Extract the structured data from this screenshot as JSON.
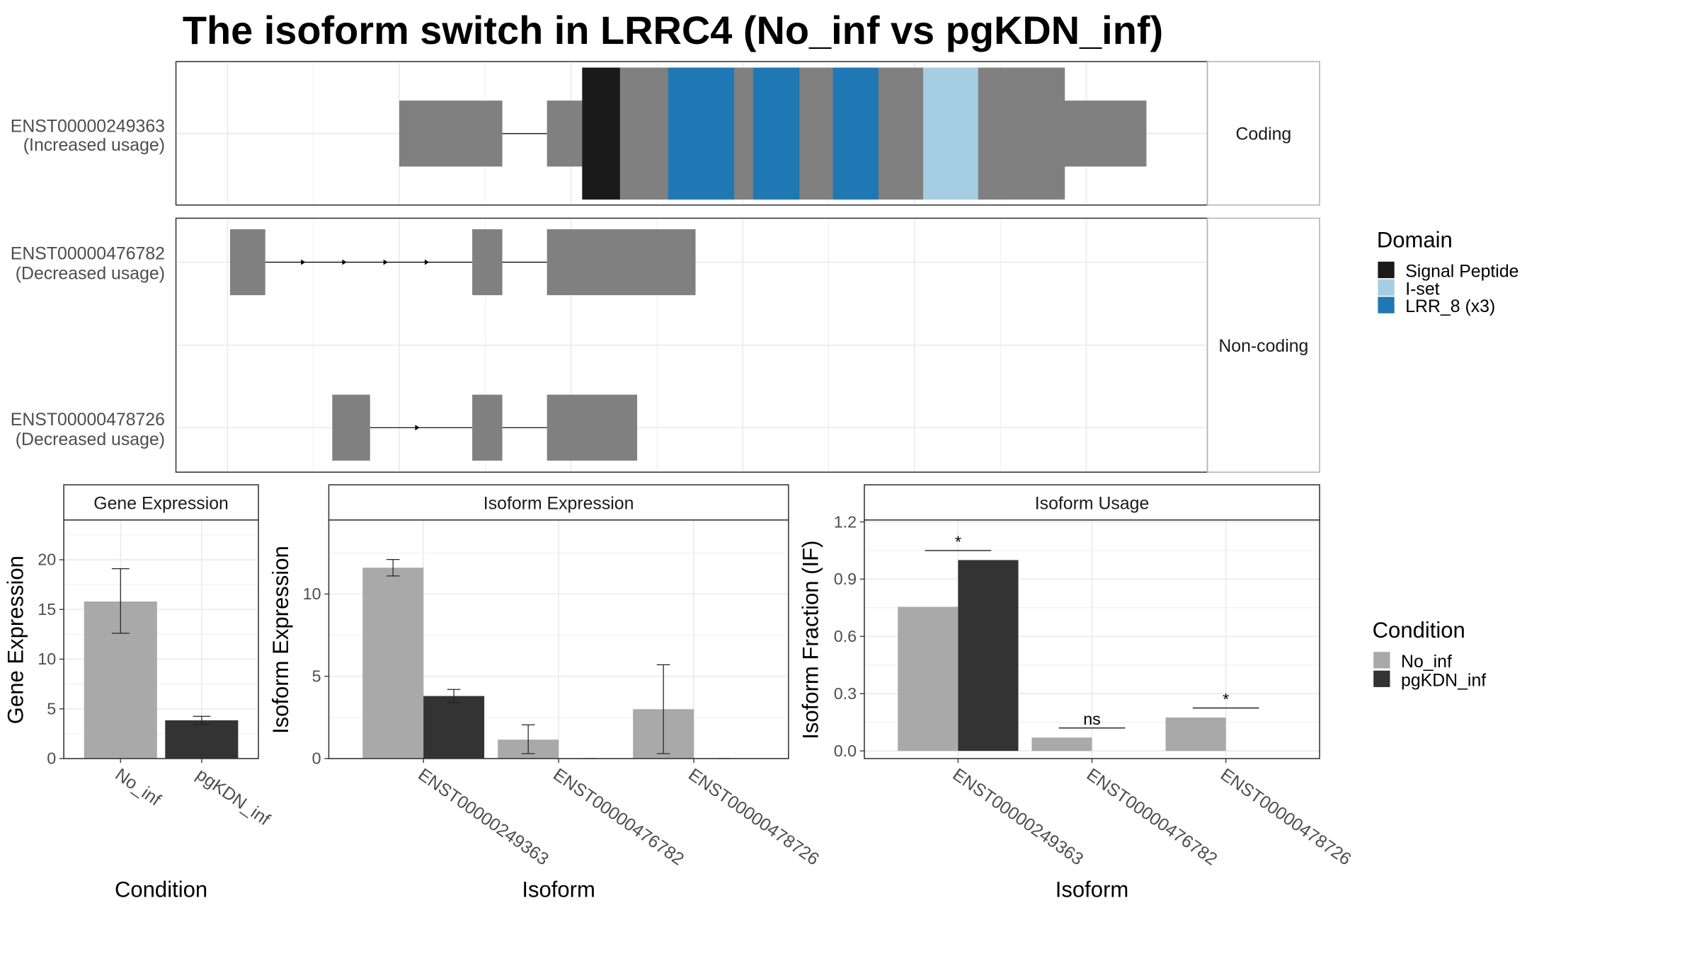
{
  "chart_data": [
    {
      "type": "isoform-structure",
      "title": "The isoform switch in LRRC4 (No_inf vs pgKDN_inf)",
      "facets": [
        "Coding",
        "Non-coding"
      ],
      "isoforms": [
        {
          "id": "ENST00000249363",
          "usage": "(Increased usage)",
          "facet": "Coding",
          "coding": true,
          "exons": [
            [
              1000,
              1120
            ],
            [
              1172,
              1870
            ]
          ],
          "cds": [
            1213,
            1775
          ],
          "domains": [
            {
              "name": "Signal Peptide",
              "start": 1213,
              "end": 1257
            },
            {
              "name": "LRR_8 (x3)",
              "start": 1313,
              "end": 1390
            },
            {
              "name": "LRR_8 (x3)",
              "start": 1412,
              "end": 1466
            },
            {
              "name": "LRR_8 (x3)",
              "start": 1505,
              "end": 1558
            },
            {
              "name": "I-set",
              "start": 1610,
              "end": 1674
            }
          ]
        },
        {
          "id": "ENST00000476782",
          "usage": "(Decreased usage)",
          "facet": "Non-coding",
          "coding": false,
          "exons": [
            [
              803,
              844
            ],
            [
              1085,
              1120
            ],
            [
              1172,
              1345
            ]
          ]
        },
        {
          "id": "ENST00000478726",
          "usage": "(Decreased usage)",
          "facet": "Non-coding",
          "coding": false,
          "exons": [
            [
              922,
              966
            ],
            [
              1085,
              1120
            ],
            [
              1172,
              1277
            ]
          ]
        }
      ],
      "legend": {
        "title": "Domain",
        "items": [
          {
            "name": "Signal Peptide",
            "color": "#1a1a1a"
          },
          {
            "name": "I-set",
            "color": "#a6cee3"
          },
          {
            "name": "LRR_8 (x3)",
            "color": "#1f78b4"
          }
        ]
      }
    },
    {
      "type": "bar",
      "strip": "Gene Expression",
      "xlabel": "Condition",
      "ylabel": "Gene Expression",
      "categories": [
        "No_inf",
        "pgKDN_inf"
      ],
      "values": [
        15.8,
        3.85
      ],
      "errors": [
        [
          12.6,
          19.1
        ],
        [
          3.45,
          4.25
        ]
      ],
      "ylim": [
        0,
        24
      ],
      "yticks": [
        0,
        5,
        10,
        15,
        20
      ]
    },
    {
      "type": "bar",
      "strip": "Isoform Expression",
      "xlabel": "Isoform",
      "ylabel": "Isoform Expression",
      "categories": [
        "ENST00000249363",
        "ENST00000476782",
        "ENST00000478726"
      ],
      "series": [
        {
          "name": "No_inf",
          "values": [
            11.6,
            1.15,
            3.0
          ],
          "errors": [
            [
              11.1,
              12.1
            ],
            [
              0.3,
              2.05
            ],
            [
              0.3,
              5.7
            ]
          ]
        },
        {
          "name": "pgKDN_inf",
          "values": [
            3.8,
            0,
            0
          ],
          "errors": [
            [
              3.4,
              4.2
            ],
            [
              0,
              0
            ],
            [
              0,
              0
            ]
          ]
        }
      ],
      "ylim": [
        0,
        14.5
      ],
      "yticks": [
        0,
        5,
        10
      ]
    },
    {
      "type": "bar",
      "strip": "Isoform Usage",
      "xlabel": "Isoform",
      "ylabel": "Isoform Fraction (IF)",
      "categories": [
        "ENST00000249363",
        "ENST00000476782",
        "ENST00000478726"
      ],
      "series": [
        {
          "name": "No_inf",
          "values": [
            0.755,
            0.07,
            0.175
          ]
        },
        {
          "name": "pgKDN_inf",
          "values": [
            1.0,
            0,
            0
          ]
        }
      ],
      "significance": [
        {
          "label": "*",
          "y": 1.05
        },
        {
          "label": "ns",
          "y": 0.12
        },
        {
          "label": "*",
          "y": 0.225
        }
      ],
      "ylim": [
        -0.04,
        1.21
      ],
      "yticks": [
        "0.0",
        "0.3",
        "0.6",
        "0.9",
        "1.2"
      ]
    }
  ],
  "condition_legend": {
    "title": "Condition",
    "items": [
      {
        "name": "No_inf",
        "color": "#a9a9a9"
      },
      {
        "name": "pgKDN_inf",
        "color": "#333333"
      }
    ]
  }
}
